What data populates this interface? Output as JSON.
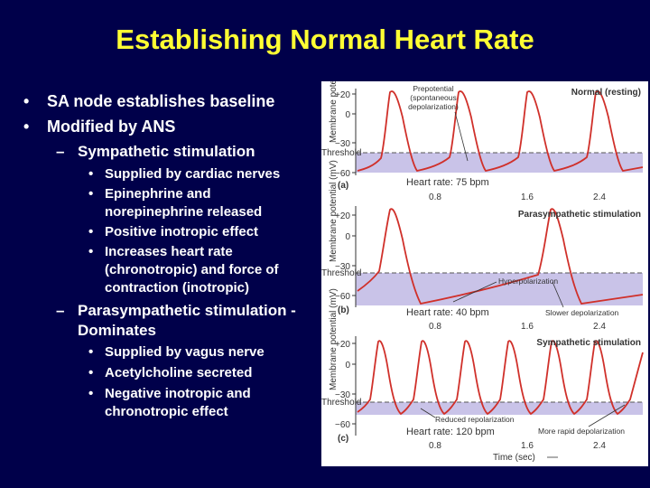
{
  "title": "Establishing Normal Heart Rate",
  "bullets": {
    "b1": "SA node establishes baseline",
    "b2": "Modified by ANS",
    "symp": "Sympathetic stimulation",
    "symp_items": [
      "Supplied by cardiac nerves",
      "Epinephrine and",
      "norepinephrine released",
      "Positive inotropic effect",
      "Increases heart rate",
      "(chronotropic) and force of",
      "contraction (inotropic)"
    ],
    "para_line1": "Parasympathetic stimulation -",
    "para_line2": "Dominates",
    "para_items": [
      "Supplied by vagus nerve",
      "Acetylcholine secreted",
      "Negative inotropic and",
      "chronotropic effect"
    ],
    "dot": "•",
    "dash": "–"
  },
  "figure": {
    "axis_label": "Membrane potential (mV)",
    "threshold": "Threshold",
    "time_label": "Time (sec)",
    "time_ticks": [
      "0.8",
      "1.6",
      "2.4"
    ],
    "panels": [
      {
        "letter": "(a)",
        "name": "Normal (resting)",
        "rate": "Heart rate: 75 bpm",
        "ticks": [
          "+20",
          "0",
          "−30",
          "−60"
        ],
        "annotations": [
          "Prepotential",
          "(spontaneous",
          "depolarization)"
        ]
      },
      {
        "letter": "(b)",
        "name": "Parasympathetic stimulation",
        "rate": "Heart rate: 40 bpm",
        "ticks": [
          "+20",
          "0",
          "−30",
          "−60"
        ],
        "annotations": [
          "Hyperpolarization",
          "Slower depolarization"
        ]
      },
      {
        "letter": "(c)",
        "name": "Sympathetic stimulation",
        "rate": "Heart rate: 120 bpm",
        "ticks": [
          "+20",
          "0",
          "−30",
          "−60"
        ],
        "annotations": [
          "Reduced repolarization",
          "More rapid depolarization"
        ]
      }
    ]
  },
  "colors": {
    "background": "#00004a",
    "title": "#ffff33",
    "trace": "#d0302a",
    "band": "#c9c3e8"
  }
}
